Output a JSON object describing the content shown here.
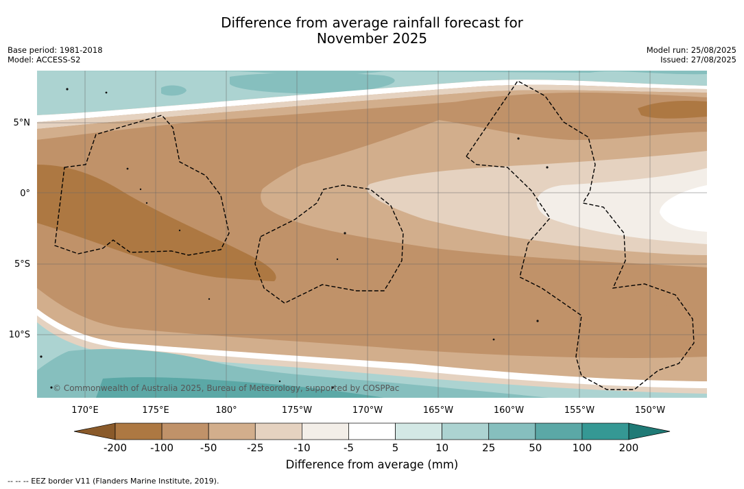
{
  "header": {
    "title_line1": "Difference from average rainfall forecast for",
    "title_line2": "November 2025",
    "base_period": "Base period: 1981-2018",
    "model": "Model: ACCESS-S2",
    "model_run": "Model run: 25/08/2025",
    "issued": "Issued: 27/08/2025"
  },
  "map": {
    "lat_labels": [
      "5°N",
      "0°",
      "5°S",
      "10°S"
    ],
    "lon_labels": [
      "170°E",
      "175°E",
      "180°",
      "175°W",
      "170°W",
      "165°W",
      "160°W",
      "155°W",
      "150°W"
    ],
    "copyright": "© Commonwealth of Australia 2025, Bureau of Meteorology, supported by COSPPac"
  },
  "colorbar": {
    "ticks": [
      "-200",
      "-100",
      "-50",
      "-25",
      "-10",
      "-5",
      "5",
      "10",
      "25",
      "50",
      "100",
      "200"
    ],
    "colors": [
      "#8a5a2a",
      "#ad7842",
      "#c09269",
      "#d2ae8c",
      "#e5d2c0",
      "#f3eee8",
      "#ffffff",
      "#d3e8e5",
      "#acd3d1",
      "#86bfbe",
      "#5ba8a6",
      "#359894",
      "#1f7a76"
    ],
    "label": "Difference from average (mm)"
  },
  "footnote": "--  --  -- EEZ border V11 (Flanders Marine Institute, 2019)."
}
